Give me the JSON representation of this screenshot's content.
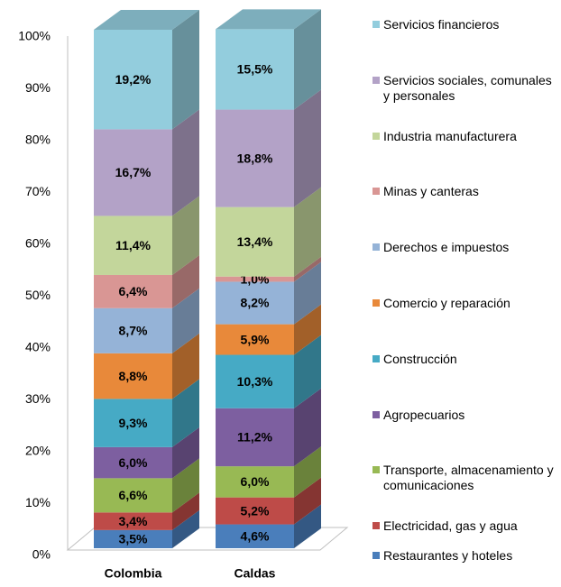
{
  "chart_data": {
    "type": "stacked_bar_3d",
    "categories": [
      "Colombia",
      "Caldas"
    ],
    "ylim": [
      0,
      100
    ],
    "yticks": [
      {
        "value": 0,
        "label": "0%"
      },
      {
        "value": 10,
        "label": "10%"
      },
      {
        "value": 20,
        "label": "20%"
      },
      {
        "value": 30,
        "label": "30%"
      },
      {
        "value": 40,
        "label": "40%"
      },
      {
        "value": 50,
        "label": "50%"
      },
      {
        "value": 60,
        "label": "60%"
      },
      {
        "value": 70,
        "label": "70%"
      },
      {
        "value": 80,
        "label": "80%"
      },
      {
        "value": 90,
        "label": "90%"
      },
      {
        "value": 100,
        "label": "100%"
      }
    ],
    "series": [
      {
        "name": "Restaurantes y hoteles",
        "color": "#4a7ebb",
        "values": [
          3.5,
          4.6
        ],
        "value_labels": [
          "3,5%",
          "4,6%"
        ]
      },
      {
        "name": "Electricidad, gas y agua",
        "color": "#be4b48",
        "values": [
          3.4,
          5.2
        ],
        "value_labels": [
          "3,4%",
          "5,2%"
        ]
      },
      {
        "name": "Transporte, almacenamiento y comunicaciones",
        "color": "#98b954",
        "values": [
          6.6,
          6.0
        ],
        "value_labels": [
          "6,6%",
          "6,0%"
        ]
      },
      {
        "name": "Agropecuarios",
        "color": "#7d5fa0",
        "values": [
          6.0,
          11.2
        ],
        "value_labels": [
          "6,0%",
          "11,2%"
        ]
      },
      {
        "name": "Construcción",
        "color": "#46aac5",
        "values": [
          9.3,
          10.3
        ],
        "value_labels": [
          "9,3%",
          "10,3%"
        ]
      },
      {
        "name": "Comercio y reparación",
        "color": "#e8893a",
        "values": [
          8.8,
          5.9
        ],
        "value_labels": [
          "8,8%",
          "5,9%"
        ]
      },
      {
        "name": "Derechos e impuestos",
        "color": "#95b3d7",
        "values": [
          8.7,
          8.2
        ],
        "value_labels": [
          "8,7%",
          "8,2%"
        ]
      },
      {
        "name": "Minas y canteras",
        "color": "#d99694",
        "values": [
          6.4,
          1.0
        ],
        "value_labels": [
          "6,4%",
          "1,0%"
        ]
      },
      {
        "name": "Industria manufacturera",
        "color": "#c3d69b",
        "values": [
          11.4,
          13.4
        ],
        "value_labels": [
          "11,4%",
          "13,4%"
        ]
      },
      {
        "name": "Servicios sociales, comunales y personales",
        "color": "#b3a2c7",
        "values": [
          16.7,
          18.8
        ],
        "value_labels": [
          "16,7%",
          "18,8%"
        ]
      },
      {
        "name": "Servicios financieros",
        "color": "#93cddd",
        "values": [
          19.2,
          15.5
        ],
        "value_labels": [
          "19,2%",
          "15,5%"
        ]
      }
    ]
  }
}
